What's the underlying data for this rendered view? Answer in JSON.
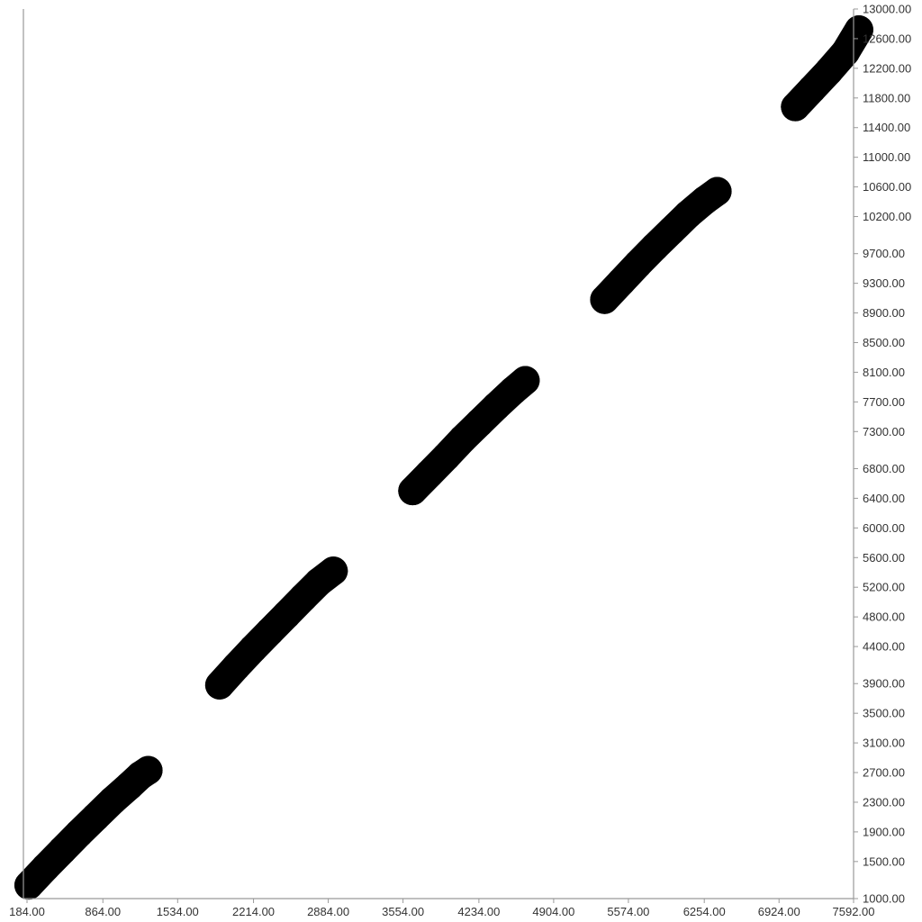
{
  "chart_data": {
    "type": "scatter",
    "title": "",
    "xlabel": "",
    "ylabel": "",
    "xlim": [
      184,
      7592
    ],
    "ylim": [
      1000,
      13000
    ],
    "x_ticks": [
      184,
      864,
      1534,
      2214,
      2884,
      3554,
      4234,
      4904,
      5574,
      6254,
      6924,
      7592
    ],
    "x_tick_labels": [
      "184.00",
      "864.00",
      "1534.00",
      "2214.00",
      "2884.00",
      "3554.00",
      "4234.00",
      "4904.00",
      "5574.00",
      "6254.00",
      "6924.00",
      "7592.00"
    ],
    "y_ticks": [
      1000,
      1500,
      1900,
      2300,
      2700,
      3100,
      3500,
      3900,
      4400,
      4800,
      5200,
      5600,
      6000,
      6400,
      6800,
      7300,
      7700,
      8100,
      8500,
      8900,
      9300,
      9700,
      10200,
      10600,
      11000,
      11400,
      11800,
      12200,
      12600,
      13000
    ],
    "y_tick_labels": [
      "1000.00",
      "1500.00",
      "1900.00",
      "2300.00",
      "2700.00",
      "3100.00",
      "3500.00",
      "3900.00",
      "4400.00",
      "4800.00",
      "5200.00",
      "5600.00",
      "6000.00",
      "6400.00",
      "6800.00",
      "7300.00",
      "7700.00",
      "8100.00",
      "8500.00",
      "8900.00",
      "9300.00",
      "9700.00",
      "10200.00",
      "10600.00",
      "11000.00",
      "11400.00",
      "11800.00",
      "12200.00",
      "12600.00",
      "13000.00"
    ],
    "y_axis_position": "right",
    "grid": false,
    "marker_color": "#000000",
    "series": [
      {
        "x": [
          200,
          350,
          500,
          650,
          800,
          950,
          1100,
          1200,
          1270
        ],
        "y": [
          1180,
          1420,
          1650,
          1880,
          2100,
          2320,
          2520,
          2660,
          2730
        ]
      },
      {
        "x": [
          1910,
          2060,
          2210,
          2360,
          2510,
          2660,
          2800,
          2930
        ],
        "y": [
          3880,
          4130,
          4370,
          4600,
          4830,
          5060,
          5270,
          5420
        ]
      },
      {
        "x": [
          3640,
          3790,
          3940,
          4090,
          4240,
          4390,
          4540,
          4650
        ],
        "y": [
          6500,
          6730,
          6960,
          7200,
          7420,
          7640,
          7850,
          7990
        ]
      },
      {
        "x": [
          5360,
          5510,
          5660,
          5810,
          5960,
          6110,
          6260,
          6370
        ],
        "y": [
          9080,
          9320,
          9560,
          9790,
          10010,
          10230,
          10420,
          10540
        ]
      },
      {
        "x": [
          7070,
          7220,
          7370,
          7520,
          7640
        ],
        "y": [
          11680,
          11920,
          12160,
          12420,
          12720
        ]
      }
    ]
  }
}
